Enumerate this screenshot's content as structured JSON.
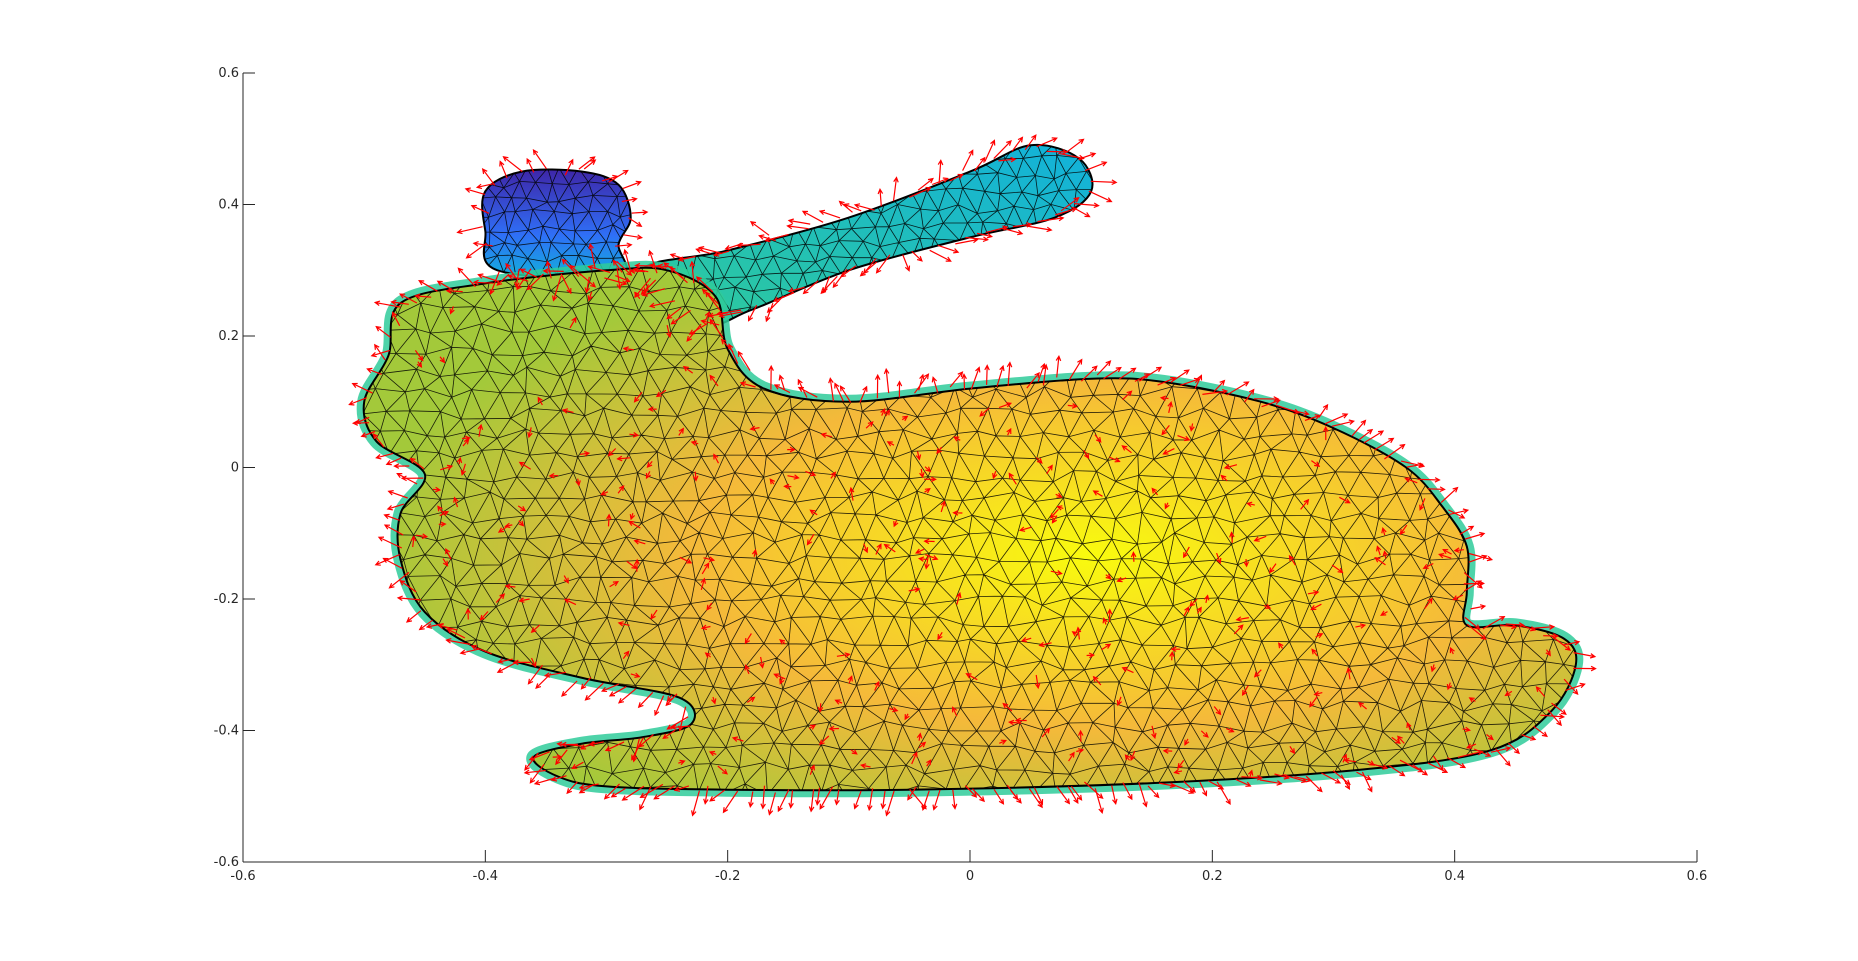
{
  "chart_data": {
    "type": "3d-surface",
    "title": "",
    "xlabel": "",
    "ylabel": "",
    "xlim": [
      -0.6,
      0.6
    ],
    "ylim": [
      -0.6,
      0.6
    ],
    "x_ticks": [
      -0.6,
      -0.4,
      -0.2,
      0,
      0.2,
      0.4,
      0.6
    ],
    "y_ticks": [
      -0.6,
      -0.4,
      -0.2,
      0,
      0.2,
      0.4,
      0.6
    ],
    "x_tick_labels": [
      "-0.6",
      "-0.4",
      "-0.2",
      "0",
      "0.2",
      "0.4",
      "0.6"
    ],
    "y_tick_labels": [
      "-0.6",
      "-0.4",
      "-0.2",
      "0",
      "0.2",
      "0.4",
      "0.6"
    ],
    "grid": false,
    "legend": "none",
    "colormap": "parula",
    "colormap_stops": [
      "#3e26a8",
      "#2f6ff7",
      "#12b1db",
      "#2fcb9a",
      "#a3c93a",
      "#f5b93a",
      "#f9fb0e"
    ],
    "mesh_edge_color": "#000000",
    "normal_vector_color": "#ff0000",
    "outline": {
      "body": [
        [
          -0.34,
          -0.47
        ],
        [
          -0.36,
          -0.44
        ],
        [
          -0.32,
          -0.42
        ],
        [
          -0.27,
          -0.41
        ],
        [
          -0.23,
          -0.39
        ],
        [
          -0.24,
          -0.35
        ],
        [
          -0.32,
          -0.32
        ],
        [
          -0.4,
          -0.28
        ],
        [
          -0.45,
          -0.22
        ],
        [
          -0.47,
          -0.14
        ],
        [
          -0.47,
          -0.07
        ],
        [
          -0.45,
          -0.01
        ],
        [
          -0.49,
          0.04
        ],
        [
          -0.5,
          0.1
        ],
        [
          -0.48,
          0.17
        ],
        [
          -0.47,
          0.25
        ],
        [
          -0.4,
          0.28
        ],
        [
          -0.3,
          0.3
        ],
        [
          -0.25,
          0.3
        ],
        [
          -0.21,
          0.26
        ],
        [
          -0.2,
          0.18
        ],
        [
          -0.17,
          0.12
        ],
        [
          -0.1,
          0.1
        ],
        [
          0.0,
          0.12
        ],
        [
          0.1,
          0.135
        ],
        [
          0.16,
          0.13
        ],
        [
          0.24,
          0.1
        ],
        [
          0.3,
          0.06
        ],
        [
          0.36,
          0.0
        ],
        [
          0.39,
          -0.06
        ],
        [
          0.41,
          -0.12
        ],
        [
          0.41,
          -0.19
        ],
        [
          0.41,
          -0.24
        ],
        [
          0.45,
          -0.24
        ],
        [
          0.49,
          -0.26
        ],
        [
          0.5,
          -0.3
        ],
        [
          0.48,
          -0.37
        ],
        [
          0.43,
          -0.43
        ],
        [
          0.32,
          -0.46
        ],
        [
          0.15,
          -0.48
        ],
        [
          -0.05,
          -0.49
        ],
        [
          -0.2,
          -0.49
        ],
        [
          -0.3,
          -0.485
        ]
      ],
      "ear_left": [
        [
          -0.39,
          0.3
        ],
        [
          -0.4,
          0.36
        ],
        [
          -0.4,
          0.42
        ],
        [
          -0.37,
          0.45
        ],
        [
          -0.32,
          0.45
        ],
        [
          -0.29,
          0.43
        ],
        [
          -0.28,
          0.38
        ],
        [
          -0.29,
          0.34
        ],
        [
          -0.29,
          0.29
        ]
      ],
      "ear_right": [
        [
          -0.27,
          0.3
        ],
        [
          -0.2,
          0.33
        ],
        [
          -0.1,
          0.38
        ],
        [
          0.0,
          0.45
        ],
        [
          0.05,
          0.49
        ],
        [
          0.09,
          0.47
        ],
        [
          0.1,
          0.42
        ],
        [
          0.07,
          0.38
        ],
        [
          0.0,
          0.35
        ],
        [
          -0.1,
          0.3
        ],
        [
          -0.18,
          0.24
        ],
        [
          -0.22,
          0.22
        ]
      ]
    }
  }
}
